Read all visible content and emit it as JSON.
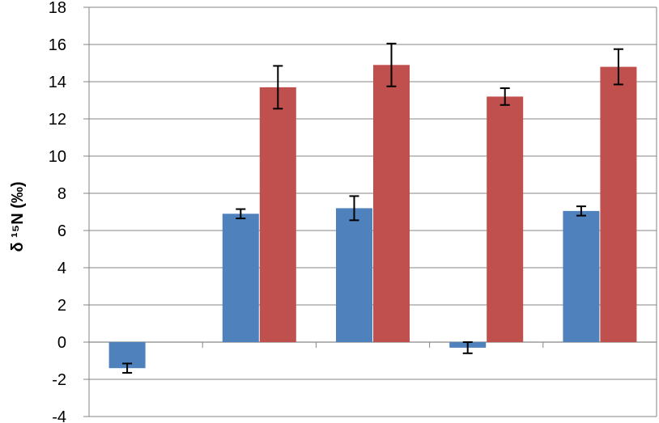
{
  "chart_data": {
    "type": "bar",
    "ylabel": "δ ¹⁵N (‰)",
    "ylim": [
      -4,
      18
    ],
    "yticks": [
      -4,
      -2,
      0,
      2,
      4,
      6,
      8,
      10,
      12,
      14,
      16,
      18
    ],
    "grid": true,
    "categories": [
      "",
      "",
      "",
      "",
      ""
    ],
    "series": [
      {
        "color": "#4f81bd",
        "values": [
          -1.4,
          6.9,
          7.2,
          -0.3,
          7.05
        ],
        "errors": [
          0.25,
          0.25,
          0.65,
          0.3,
          0.25
        ]
      },
      {
        "color": "#c0504d",
        "values": [
          null,
          13.7,
          14.9,
          13.2,
          14.8
        ],
        "errors": [
          null,
          1.15,
          1.15,
          0.45,
          0.95
        ]
      }
    ]
  }
}
